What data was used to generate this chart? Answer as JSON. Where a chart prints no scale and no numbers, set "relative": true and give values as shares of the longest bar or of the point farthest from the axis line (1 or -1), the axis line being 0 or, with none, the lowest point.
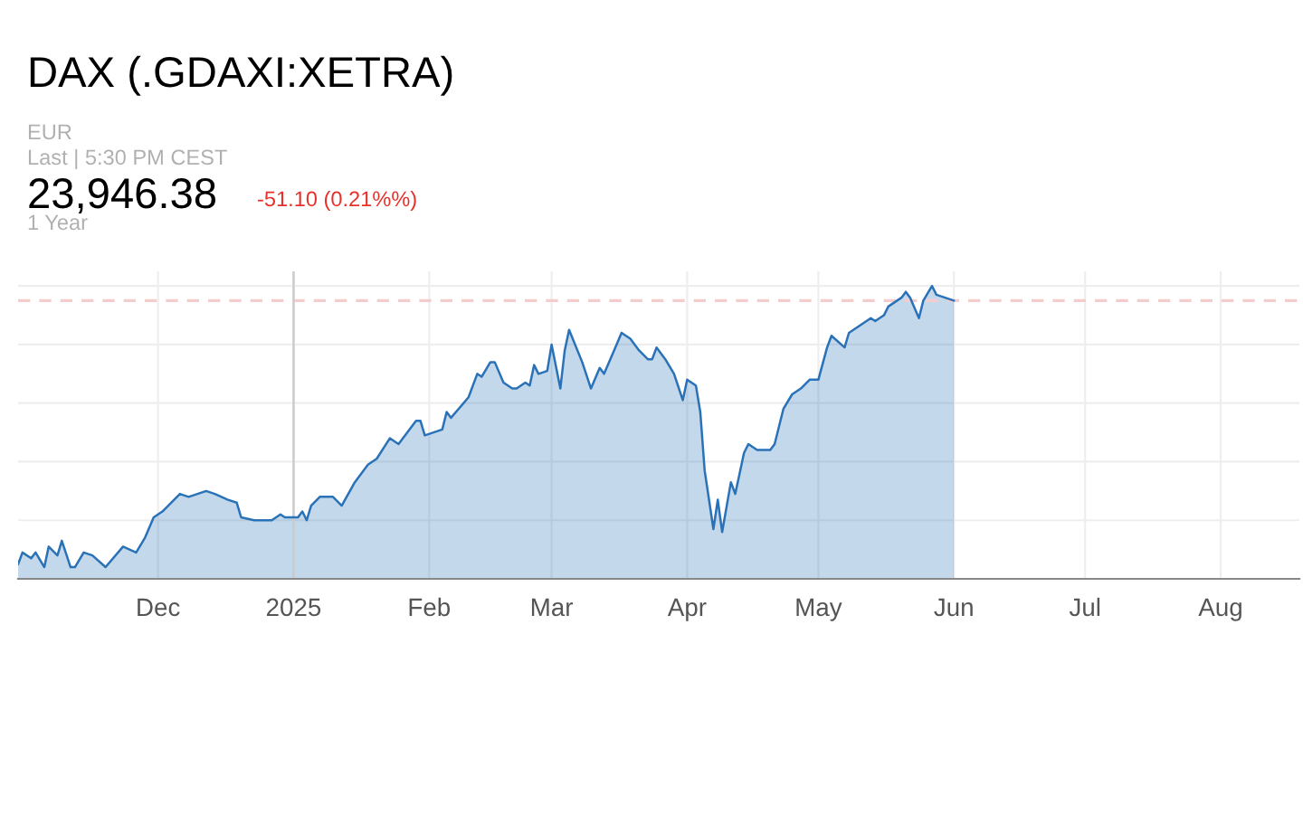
{
  "chart_data": {
    "type": "area",
    "title": "DAX (.GDAXI:XETRA)",
    "subtitle": "EUR",
    "annotations": [
      "Last | 5:30 PM CEST",
      "23,946.38",
      "-51.10 (0.21%%)",
      "1 Year"
    ],
    "relative": true,
    "grid": true,
    "legend": false,
    "xlim": [
      "2024-10-30",
      "2025-08-19"
    ],
    "xticks": [
      {
        "value": "2024-12-01",
        "label": "Dec"
      },
      {
        "value": "2025-01-01",
        "label": "2025"
      },
      {
        "value": "2025-02-01",
        "label": "Feb"
      },
      {
        "value": "2025-03-01",
        "label": "Mar"
      },
      {
        "value": "2025-04-01",
        "label": "Apr"
      },
      {
        "value": "2025-05-01",
        "label": "May"
      },
      {
        "value": "2025-06-01",
        "label": "Jun"
      },
      {
        "value": "2025-07-01",
        "label": "Jul"
      },
      {
        "value": "2025-08-01",
        "label": "Aug"
      }
    ],
    "ref_lines": [
      {
        "axis": "y",
        "value": 0.95,
        "label": null,
        "color": "#f4cccc",
        "line_style": "dashed"
      },
      {
        "axis": "x",
        "value": "2025-01-01",
        "label": null,
        "color": "#cccccc",
        "line_style": "solid"
      }
    ],
    "series": [
      {
        "color": "#2a72b8",
        "x": [
          "2024-10-30",
          "2024-10-31",
          "2024-11-02",
          "2024-11-03",
          "2024-11-05",
          "2024-11-06",
          "2024-11-08",
          "2024-11-09",
          "2024-11-11",
          "2024-11-12",
          "2024-11-14",
          "2024-11-16",
          "2024-11-19",
          "2024-11-23",
          "2024-11-26",
          "2024-11-28",
          "2024-11-30",
          "2024-12-02",
          "2024-12-06",
          "2024-12-08",
          "2024-12-10",
          "2024-12-12",
          "2024-12-14",
          "2024-12-17",
          "2024-12-19",
          "2024-12-20",
          "2024-12-23",
          "2024-12-27",
          "2024-12-29",
          "2024-12-30",
          "2025-01-02",
          "2025-01-03",
          "2025-01-04",
          "2025-01-05",
          "2025-01-07",
          "2025-01-09",
          "2025-01-10",
          "2025-01-12",
          "2025-01-15",
          "2025-01-16",
          "2025-01-18",
          "2025-01-20",
          "2025-01-23",
          "2025-01-25",
          "2025-01-29",
          "2025-01-30",
          "2025-01-31",
          "2025-02-04",
          "2025-02-05",
          "2025-02-06",
          "2025-02-10",
          "2025-02-12",
          "2025-02-13",
          "2025-02-15",
          "2025-02-16",
          "2025-02-18",
          "2025-02-20",
          "2025-02-21",
          "2025-02-23",
          "2025-02-24",
          "2025-02-25",
          "2025-02-26",
          "2025-02-28",
          "2025-03-01",
          "2025-03-03",
          "2025-03-04",
          "2025-03-05",
          "2025-03-08",
          "2025-03-10",
          "2025-03-12",
          "2025-03-13",
          "2025-03-15",
          "2025-03-17",
          "2025-03-19",
          "2025-03-21",
          "2025-03-23",
          "2025-03-24",
          "2025-03-25",
          "2025-03-27",
          "2025-03-29",
          "2025-03-31",
          "2025-04-01",
          "2025-04-03",
          "2025-04-04",
          "2025-04-05",
          "2025-04-07",
          "2025-04-08",
          "2025-04-09",
          "2025-04-11",
          "2025-04-12",
          "2025-04-14",
          "2025-04-15",
          "2025-04-17",
          "2025-04-20",
          "2025-04-21",
          "2025-04-23",
          "2025-04-25",
          "2025-04-27",
          "2025-04-29",
          "2025-05-01",
          "2025-05-03",
          "2025-05-04",
          "2025-05-07",
          "2025-05-08",
          "2025-05-11",
          "2025-05-13",
          "2025-05-14",
          "2025-05-16",
          "2025-05-17",
          "2025-05-20",
          "2025-05-21",
          "2025-05-22",
          "2025-05-24",
          "2025-05-25",
          "2025-05-27",
          "2025-05-28",
          "2025-05-30",
          "2025-06-01"
        ],
        "values": [
          0.05,
          0.09,
          0.07,
          0.09,
          0.04,
          0.11,
          0.08,
          0.13,
          0.04,
          0.04,
          0.09,
          0.08,
          0.04,
          0.11,
          0.09,
          0.14,
          0.21,
          0.23,
          0.29,
          0.28,
          0.29,
          0.3,
          0.29,
          0.27,
          0.26,
          0.21,
          0.2,
          0.2,
          0.22,
          0.21,
          0.21,
          0.23,
          0.2,
          0.25,
          0.28,
          0.28,
          0.28,
          0.25,
          0.33,
          0.35,
          0.39,
          0.41,
          0.48,
          0.46,
          0.54,
          0.54,
          0.49,
          0.51,
          0.57,
          0.55,
          0.62,
          0.7,
          0.69,
          0.74,
          0.74,
          0.67,
          0.65,
          0.65,
          0.67,
          0.66,
          0.73,
          0.7,
          0.71,
          0.8,
          0.65,
          0.78,
          0.85,
          0.74,
          0.65,
          0.72,
          0.7,
          0.77,
          0.84,
          0.82,
          0.78,
          0.75,
          0.75,
          0.79,
          0.75,
          0.7,
          0.61,
          0.68,
          0.66,
          0.57,
          0.37,
          0.17,
          0.27,
          0.16,
          0.33,
          0.29,
          0.43,
          0.46,
          0.44,
          0.44,
          0.46,
          0.58,
          0.63,
          0.65,
          0.68,
          0.68,
          0.79,
          0.83,
          0.79,
          0.84,
          0.87,
          0.89,
          0.88,
          0.9,
          0.93,
          0.96,
          0.98,
          0.96,
          0.89,
          0.95,
          1.0,
          0.97,
          0.96,
          0.95
        ]
      }
    ]
  }
}
